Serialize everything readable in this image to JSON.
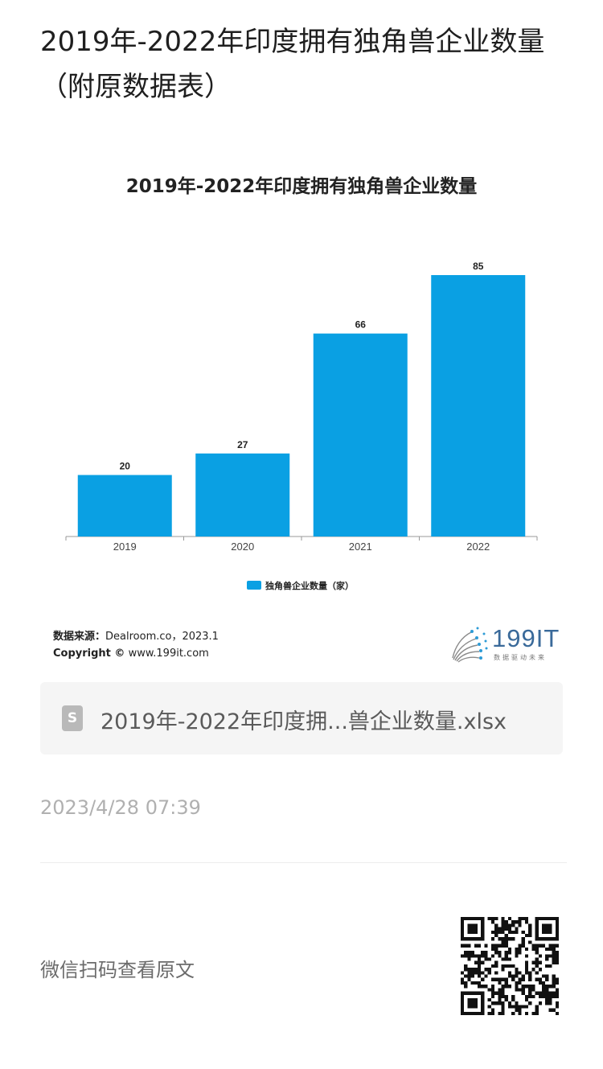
{
  "page": {
    "title": "2019年-2022年印度拥有独角兽企业数量（附原数据表）"
  },
  "chart": {
    "title": "2019年-2022年印度拥有独角兽企业数量",
    "legend_label": "独角兽企业数量（家）"
  },
  "chart_data": {
    "type": "bar",
    "title": "2019年-2022年印度拥有独角兽企业数量",
    "categories": [
      "2019",
      "2020",
      "2021",
      "2022"
    ],
    "series": [
      {
        "name": "独角兽企业数量（家）",
        "values": [
          20,
          27,
          66,
          85
        ]
      }
    ],
    "xlabel": "",
    "ylabel": "",
    "ylim": [
      0,
      85
    ],
    "grid": false,
    "legend_position": "bottom",
    "bar_color": "#0aa0e3"
  },
  "source": {
    "label": "数据来源：",
    "text": "Dealroom.co，2023.1",
    "copyright_label": "Copyright ©",
    "copyright_site": "www.199it.com"
  },
  "logo": {
    "text": "199IT",
    "subtitle": "数据驱动未来"
  },
  "file": {
    "icon_letter": "S",
    "name": "2019年-2022年印度拥...兽企业数量.xlsx"
  },
  "meta": {
    "timestamp": "2023/4/28 07:39"
  },
  "footer": {
    "wechat_label": "微信扫码查看原文"
  }
}
